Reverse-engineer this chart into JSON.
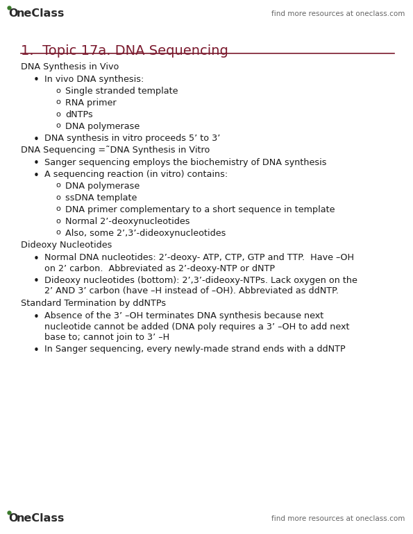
{
  "bg_color": "#ffffff",
  "header_text": "find more resources at oneclass.com",
  "header_color": "#666666",
  "title": "1.  Topic 17a. DNA Sequencing",
  "title_color": "#7b1a2e",
  "title_fontsize": 14,
  "rule_color": "#7b1a2e",
  "body_color": "#1a1a1a",
  "body_fontsize": 9.2,
  "oneclass_color": "#2a2a2a",
  "oneclass_dot_color": "#3a7a2a",
  "sections": [
    {
      "type": "heading",
      "text": "DNA Synthesis in Vivo"
    },
    {
      "type": "bullet1",
      "text": "In vivo DNA synthesis:"
    },
    {
      "type": "bullet2",
      "text": "Single stranded template"
    },
    {
      "type": "bullet2",
      "text": "RNA primer"
    },
    {
      "type": "bullet2",
      "text": "dNTPs"
    },
    {
      "type": "bullet2",
      "text": "DNA polymerase"
    },
    {
      "type": "bullet1",
      "text": "DNA synthesis in vitro proceeds 5’ to 3’"
    },
    {
      "type": "heading",
      "text": "DNA Sequencing =˜DNA Synthesis in Vitro"
    },
    {
      "type": "bullet1",
      "text": "Sanger sequencing employs the biochemistry of DNA synthesis"
    },
    {
      "type": "bullet1",
      "text": "A sequencing reaction (in vitro) contains:"
    },
    {
      "type": "bullet2",
      "text": "DNA polymerase"
    },
    {
      "type": "bullet2",
      "text": "ssDNA template"
    },
    {
      "type": "bullet2",
      "text": "DNA primer complementary to a short sequence in template"
    },
    {
      "type": "bullet2",
      "text": "Normal 2’-deoxynucleotides"
    },
    {
      "type": "bullet2",
      "text": "Also, some 2’,3’-dideoxynucleotides"
    },
    {
      "type": "heading",
      "text": "Dideoxy Nucleotides"
    },
    {
      "type": "bullet1_wrap",
      "lines": [
        "Normal DNA nucleotides: 2’-deoxy- ATP, CTP, GTP and TTP.  Have –OH",
        "on 2’ carbon.  Abbreviated as 2’-deoxy-NTP or dNTP"
      ]
    },
    {
      "type": "bullet1_wrap",
      "lines": [
        "Dideoxy nucleotides (bottom): 2’,3’-dideoxy-NTPs. Lack oxygen on the",
        "2’ AND 3’ carbon (have –H instead of –OH). Abbreviated as ddNTP."
      ]
    },
    {
      "type": "heading",
      "text": "Standard Termination by ddNTPs"
    },
    {
      "type": "bullet1_wrap",
      "lines": [
        "Absence of the 3’ –OH terminates DNA synthesis because next",
        "nucleotide cannot be added (DNA poly requires a 3’ –OH to add next",
        "base to; cannot join to 3’ –H"
      ]
    },
    {
      "type": "bullet1",
      "text": "In Sanger sequencing, every newly-made strand ends with a ddNTP"
    }
  ]
}
